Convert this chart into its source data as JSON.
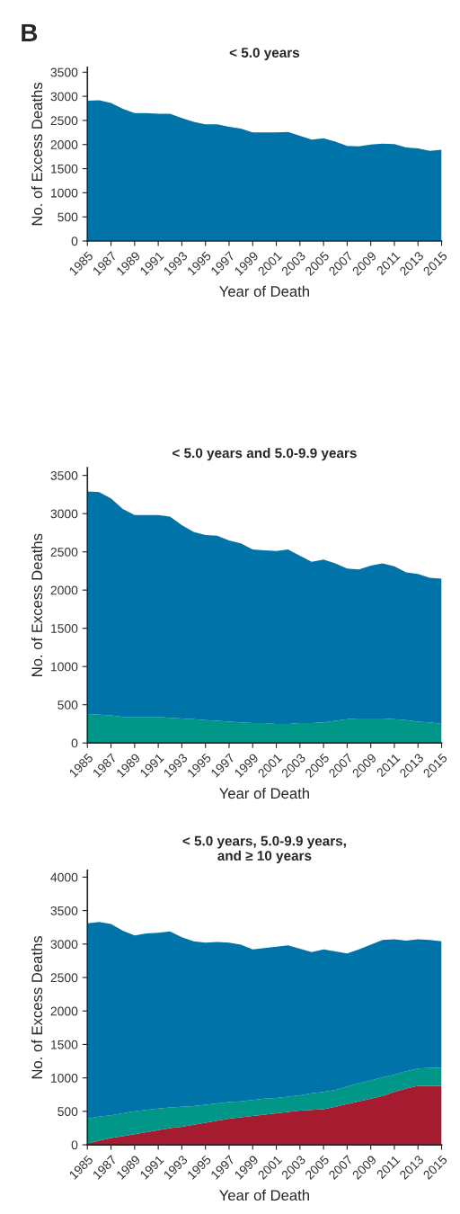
{
  "chart_data": [
    {
      "type": "area",
      "title": "< 5.0 years",
      "xlabel": "Year of Death",
      "ylabel": "No. of Excess Deaths",
      "annotations": [
        "B"
      ],
      "stacked": true,
      "x": [
        1985,
        1986,
        1987,
        1988,
        1989,
        1990,
        1991,
        1992,
        1993,
        1994,
        1995,
        1996,
        1997,
        1998,
        1999,
        2000,
        2001,
        2002,
        2003,
        2004,
        2005,
        2006,
        2007,
        2008,
        2009,
        2010,
        2011,
        2012,
        2013,
        2014,
        2015
      ],
      "xlim": [
        1985,
        2015
      ],
      "xticks": [
        1985,
        1987,
        1989,
        1991,
        1993,
        1995,
        1997,
        1999,
        2001,
        2003,
        2005,
        2007,
        2009,
        2011,
        2013,
        2015
      ],
      "ylim": [
        0,
        3600
      ],
      "yticks": [
        0,
        500,
        1000,
        1500,
        2000,
        2500,
        3000,
        3500
      ],
      "series": [
        {
          "color": "#0074a8",
          "values": [
            2910,
            2920,
            2860,
            2740,
            2650,
            2650,
            2640,
            2640,
            2550,
            2470,
            2420,
            2420,
            2370,
            2330,
            2250,
            2250,
            2250,
            2260,
            2180,
            2100,
            2130,
            2060,
            1970,
            1960,
            2000,
            2020,
            2010,
            1940,
            1920,
            1870,
            1890
          ]
        }
      ]
    },
    {
      "type": "area",
      "title": "< 5.0 years and 5.0-9.9 years",
      "xlabel": "Year of Death",
      "ylabel": "No. of Excess Deaths",
      "stacked": true,
      "x": [
        1985,
        1986,
        1987,
        1988,
        1989,
        1990,
        1991,
        1992,
        1993,
        1994,
        1995,
        1996,
        1997,
        1998,
        1999,
        2000,
        2001,
        2002,
        2003,
        2004,
        2005,
        2006,
        2007,
        2008,
        2009,
        2010,
        2011,
        2012,
        2013,
        2014,
        2015
      ],
      "xlim": [
        1985,
        2015
      ],
      "xticks": [
        1985,
        1987,
        1989,
        1991,
        1993,
        1995,
        1997,
        1999,
        2001,
        2003,
        2005,
        2007,
        2009,
        2011,
        2013,
        2015
      ],
      "ylim": [
        0,
        3600
      ],
      "yticks": [
        0,
        500,
        1000,
        1500,
        2000,
        2500,
        3000,
        3500
      ],
      "series": [
        {
          "color": "#009688",
          "values": [
            380,
            370,
            360,
            340,
            340,
            340,
            340,
            330,
            320,
            310,
            300,
            290,
            280,
            270,
            260,
            260,
            250,
            250,
            260,
            260,
            270,
            290,
            310,
            320,
            320,
            320,
            310,
            300,
            280,
            270,
            250
          ]
        },
        {
          "color": "#0074a8",
          "values": [
            2910,
            2910,
            2840,
            2720,
            2640,
            2640,
            2640,
            2630,
            2530,
            2450,
            2420,
            2420,
            2370,
            2340,
            2270,
            2260,
            2260,
            2280,
            2190,
            2110,
            2130,
            2060,
            1970,
            1950,
            2000,
            2030,
            2000,
            1930,
            1930,
            1890,
            1900
          ]
        }
      ]
    },
    {
      "type": "area",
      "title": "< 5.0 years, 5.0-9.9 years,\nand ≥ 10 years",
      "xlabel": "Year of Death",
      "ylabel": "No. of Excess Deaths",
      "stacked": true,
      "x": [
        1985,
        1986,
        1987,
        1988,
        1989,
        1990,
        1991,
        1992,
        1993,
        1994,
        1995,
        1996,
        1997,
        1998,
        1999,
        2000,
        2001,
        2002,
        2003,
        2004,
        2005,
        2006,
        2007,
        2008,
        2009,
        2010,
        2011,
        2012,
        2013,
        2014,
        2015
      ],
      "xlim": [
        1985,
        2015
      ],
      "xticks": [
        1985,
        1987,
        1989,
        1991,
        1993,
        1995,
        1997,
        1999,
        2001,
        2003,
        2005,
        2007,
        2009,
        2011,
        2013,
        2015
      ],
      "ylim": [
        0,
        4100
      ],
      "yticks": [
        0,
        500,
        1000,
        1500,
        2000,
        2500,
        3000,
        3500,
        4000
      ],
      "series": [
        {
          "color": "#a51c30",
          "values": [
            20,
            60,
            100,
            130,
            160,
            190,
            220,
            250,
            270,
            300,
            330,
            360,
            390,
            410,
            430,
            450,
            470,
            490,
            510,
            520,
            530,
            570,
            610,
            650,
            690,
            730,
            790,
            840,
            880,
            880,
            880
          ]
        },
        {
          "color": "#009688",
          "values": [
            370,
            360,
            340,
            340,
            340,
            330,
            320,
            310,
            300,
            280,
            270,
            260,
            250,
            240,
            240,
            240,
            230,
            230,
            230,
            250,
            260,
            250,
            260,
            270,
            270,
            280,
            260,
            260,
            260,
            270,
            270
          ]
        },
        {
          "color": "#0074a8",
          "values": [
            2920,
            2910,
            2860,
            2730,
            2630,
            2640,
            2630,
            2630,
            2530,
            2460,
            2420,
            2410,
            2380,
            2340,
            2250,
            2250,
            2260,
            2260,
            2190,
            2110,
            2130,
            2070,
            1990,
            2000,
            2030,
            2050,
            2020,
            1950,
            1930,
            1910,
            1890
          ]
        }
      ]
    }
  ]
}
